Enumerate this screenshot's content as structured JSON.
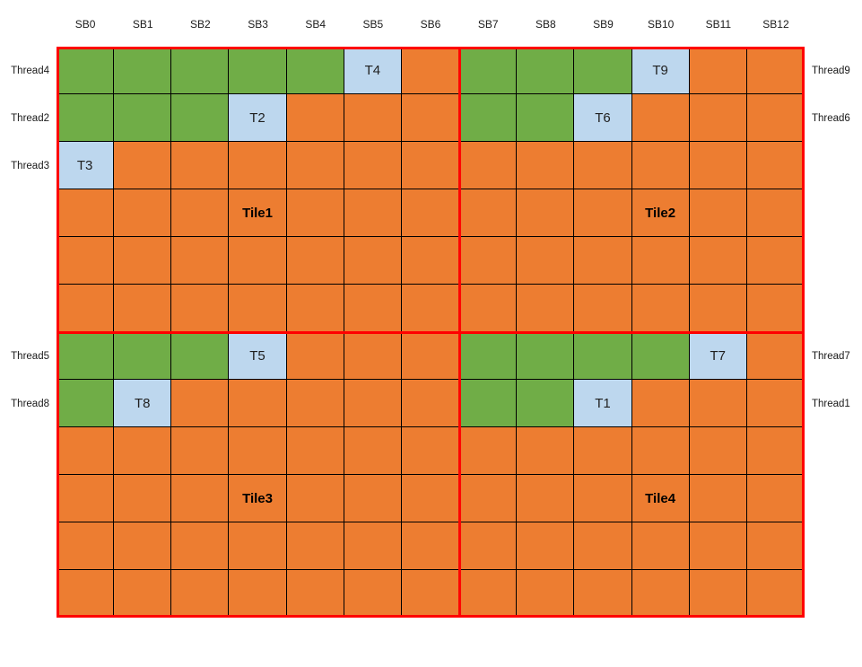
{
  "diagram": {
    "description": "thread-to-tile scheduling grid",
    "colors": {
      "green": "#70AD47",
      "orange": "#ED7D31",
      "blue": "#BDD7EE",
      "red": "#FF0000",
      "gridline": "#000000"
    },
    "column_headers": [
      "SB0",
      "SB1",
      "SB2",
      "SB3",
      "SB4",
      "SB5",
      "SB6",
      "SB7",
      "SB8",
      "SB9",
      "SB10",
      "SB11",
      "SB12"
    ],
    "row_labels_left": [
      {
        "row": 1,
        "label": "Thread4"
      },
      {
        "row": 2,
        "label": "Thread2"
      },
      {
        "row": 3,
        "label": "Thread3"
      },
      {
        "row": 7,
        "label": "Thread5"
      },
      {
        "row": 8,
        "label": "Thread8"
      }
    ],
    "row_labels_right": [
      {
        "row": 1,
        "label": "Thread9"
      },
      {
        "row": 2,
        "label": "Thread6"
      },
      {
        "row": 7,
        "label": "Thread7"
      },
      {
        "row": 8,
        "label": "Thread1"
      }
    ],
    "tile_names": [
      "Tile1",
      "Tile2",
      "Tile3",
      "Tile4"
    ],
    "grid": {
      "rows": 12,
      "cols": 13,
      "legend": "G=green, O=orange, B=blue highlighted cell; text after colon is the visible cell label",
      "cells": [
        [
          "G",
          "G",
          "G",
          "G",
          "G",
          "B:T4",
          "O",
          "G",
          "G",
          "G",
          "B:T9",
          "O",
          "O"
        ],
        [
          "G",
          "G",
          "G",
          "B:T2",
          "O",
          "O",
          "O",
          "G",
          "G",
          "B:T6",
          "O",
          "O",
          "O"
        ],
        [
          "B:T3",
          "O",
          "O",
          "O",
          "O",
          "O",
          "O",
          "O",
          "O",
          "O",
          "O",
          "O",
          "O"
        ],
        [
          "O",
          "O",
          "O",
          "O:Tile1",
          "O",
          "O",
          "O",
          "O",
          "O",
          "O",
          "O:Tile2",
          "O",
          "O"
        ],
        [
          "O",
          "O",
          "O",
          "O",
          "O",
          "O",
          "O",
          "O",
          "O",
          "O",
          "O",
          "O",
          "O"
        ],
        [
          "O",
          "O",
          "O",
          "O",
          "O",
          "O",
          "O",
          "O",
          "O",
          "O",
          "O",
          "O",
          "O"
        ],
        [
          "G",
          "G",
          "G",
          "B:T5",
          "O",
          "O",
          "O",
          "G",
          "G",
          "G",
          "G",
          "B:T7",
          "O"
        ],
        [
          "G",
          "B:T8",
          "O",
          "O",
          "O",
          "O",
          "O",
          "G",
          "G",
          "B:T1",
          "O",
          "O",
          "O"
        ],
        [
          "O",
          "O",
          "O",
          "O",
          "O",
          "O",
          "O",
          "O",
          "O",
          "O",
          "O",
          "O",
          "O"
        ],
        [
          "O",
          "O",
          "O",
          "O:Tile3",
          "O",
          "O",
          "O",
          "O",
          "O",
          "O",
          "O:Tile4",
          "O",
          "O"
        ],
        [
          "O",
          "O",
          "O",
          "O",
          "O",
          "O",
          "O",
          "O",
          "O",
          "O",
          "O",
          "O",
          "O"
        ],
        [
          "O",
          "O",
          "O",
          "O",
          "O",
          "O",
          "O",
          "O",
          "O",
          "O",
          "O",
          "O",
          "O"
        ]
      ]
    }
  }
}
